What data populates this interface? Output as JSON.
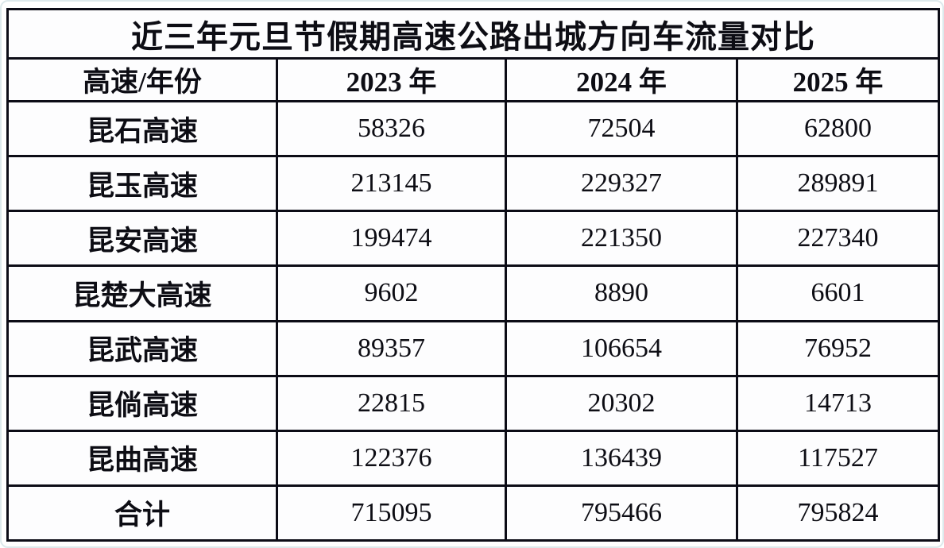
{
  "table": {
    "title": "近三年元旦节假期高速公路出城方向车流量对比",
    "columns": [
      "高速/年份",
      "2023 年",
      "2024 年",
      "2025 年"
    ],
    "rows": [
      {
        "label": "昆石高速",
        "values": [
          "58326",
          "72504",
          "62800"
        ]
      },
      {
        "label": "昆玉高速",
        "values": [
          "213145",
          "229327",
          "289891"
        ]
      },
      {
        "label": "昆安高速",
        "values": [
          "199474",
          "221350",
          "227340"
        ]
      },
      {
        "label": "昆楚大高速",
        "values": [
          "9602",
          "8890",
          "6601"
        ]
      },
      {
        "label": "昆武高速",
        "values": [
          "89357",
          "106654",
          "76952"
        ]
      },
      {
        "label": "昆倘高速",
        "values": [
          "22815",
          "20302",
          "14713"
        ]
      },
      {
        "label": "昆曲高速",
        "values": [
          "122376",
          "136439",
          "117527"
        ]
      },
      {
        "label": "合计",
        "values": [
          "715095",
          "795466",
          "795824"
        ]
      }
    ]
  },
  "chart_data": {
    "type": "table",
    "title": "近三年元旦节假期高速公路出城方向车流量对比",
    "categories": [
      "昆石高速",
      "昆玉高速",
      "昆安高速",
      "昆楚大高速",
      "昆武高速",
      "昆倘高速",
      "昆曲高速",
      "合计"
    ],
    "series": [
      {
        "name": "2023 年",
        "values": [
          58326,
          213145,
          199474,
          9602,
          89357,
          22815,
          122376,
          715095
        ]
      },
      {
        "name": "2024 年",
        "values": [
          72504,
          229327,
          221350,
          8890,
          106654,
          20302,
          136439,
          795466
        ]
      },
      {
        "name": "2025 年",
        "values": [
          62800,
          289891,
          227340,
          6601,
          76952,
          14713,
          117527,
          795824
        ]
      }
    ]
  },
  "colors": {
    "border": "#0c0c16",
    "background": "#ffffff",
    "cell_background": "#fdfdfe",
    "text": "#0d0d14"
  }
}
